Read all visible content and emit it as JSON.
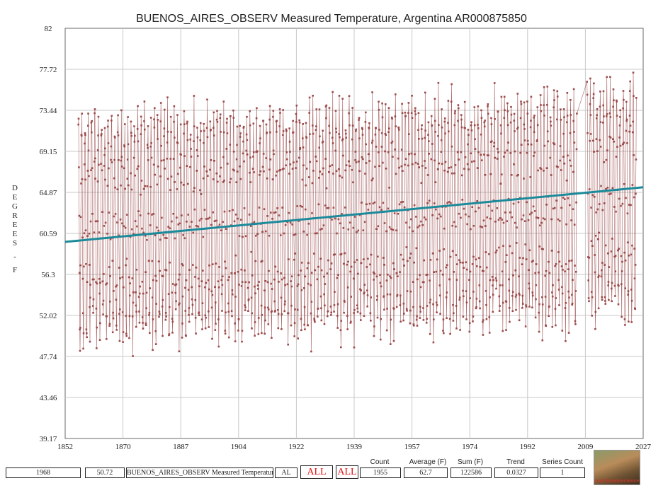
{
  "chart_data": {
    "type": "line",
    "title": "BUENOS_AIRES_OBSERV Measured Temperature, Argentina AR000875850",
    "ylabel": "DEGREES - F",
    "ylabel_letters": [
      "D",
      "E",
      "G",
      "R",
      "E",
      "E",
      "S",
      "-",
      "F"
    ],
    "xlim": [
      1852,
      2027
    ],
    "ylim": [
      39.17,
      82
    ],
    "x_ticks": [
      "1852",
      "1870",
      "1887",
      "1904",
      "1922",
      "1939",
      "1957",
      "1974",
      "1992",
      "2009",
      "2027"
    ],
    "y_ticks": [
      "82",
      "77.72",
      "73.44",
      "69.15",
      "64.87",
      "60.59",
      "56.3",
      "52.02",
      "47.74",
      "43.46",
      "39.17"
    ],
    "grid": true,
    "series": [
      {
        "kind": "monthly-temperature",
        "color": "#9c4a4a",
        "segments": [
          {
            "start_year": 1856,
            "end_year": 2006,
            "mean": 62.2,
            "amplitude": 11.5
          },
          {
            "start_year": 2010,
            "end_year": 2024,
            "mean": 63.2,
            "amplitude": 12.2
          }
        ]
      },
      {
        "kind": "trend",
        "color": "#1b8a9a",
        "x": [
          1852,
          2027
        ],
        "y": [
          59.7,
          65.4
        ]
      }
    ]
  },
  "footer": {
    "field1": "1968",
    "field2": "50.72",
    "field3": "BUENOS_AIRES_OBSERV Measured Temperature",
    "field4": "AL",
    "all1": "ALL",
    "all2": "ALL",
    "count_label": "Count",
    "count": "1955",
    "average_label": "Average (F)",
    "average": "62.7",
    "sum_label": "Sum (F)",
    "sum": "122586",
    "trend_label": "Trend",
    "trend": "0.0327",
    "series_count_label": "Series Count",
    "series_count": "1"
  },
  "logo": {
    "text": "realclimatescience",
    "icon": "eagle-photo"
  },
  "colors": {
    "grid": "#c8c8c8",
    "data": "#9c4a4a",
    "trend": "#1b8a9a",
    "frame": "#6a6a6a"
  }
}
